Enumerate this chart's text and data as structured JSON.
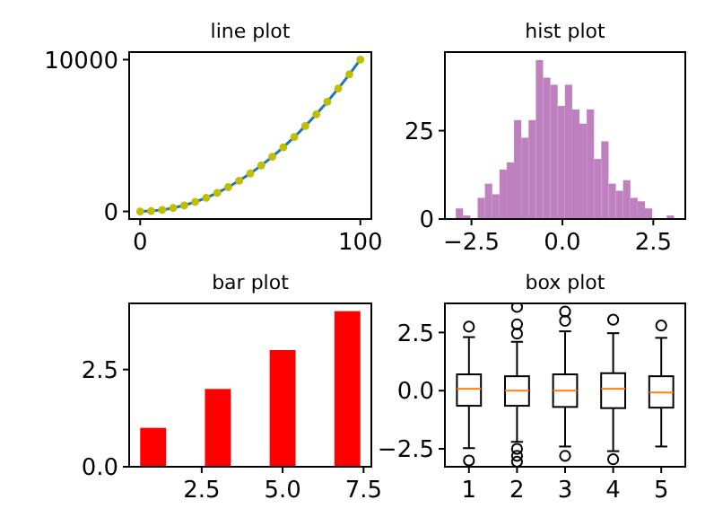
{
  "chart_data": [
    {
      "type": "line",
      "title": "line plot",
      "x": [
        0,
        5,
        10,
        15,
        20,
        25,
        30,
        35,
        40,
        45,
        50,
        55,
        60,
        65,
        70,
        75,
        80,
        85,
        90,
        95,
        100
      ],
      "xlim": [
        -5,
        105
      ],
      "ylim": [
        -500,
        10500
      ],
      "xticks": [
        0,
        100
      ],
      "yticks": [
        0,
        10000
      ],
      "series": [
        {
          "type": "line",
          "color": "#1f77b4",
          "values": [
            0,
            25,
            100,
            225,
            400,
            625,
            900,
            1225,
            1600,
            2025,
            2500,
            3025,
            3600,
            4225,
            4900,
            5625,
            6400,
            7225,
            8100,
            9025,
            10000
          ]
        },
        {
          "type": "scatter",
          "color": "#bfbf00",
          "marker": "circle",
          "values": [
            0,
            25,
            100,
            225,
            400,
            625,
            900,
            1225,
            1600,
            2025,
            2500,
            3025,
            3600,
            4225,
            4900,
            5625,
            6400,
            7225,
            8100,
            9025,
            10000
          ]
        }
      ]
    },
    {
      "type": "histogram",
      "title": "hist plot",
      "color": "#bf80bf",
      "xlim": [
        -3.23,
        3.38
      ],
      "ylim": [
        0,
        47.25
      ],
      "xticks": [
        {
          "value": -2.5,
          "label": "−2.5"
        },
        {
          "value": 0,
          "label": "0.0"
        },
        {
          "value": 2.5,
          "label": "2.5"
        }
      ],
      "yticks": [
        0,
        25
      ],
      "bins": [
        -2.93,
        -2.73,
        -2.53,
        -2.33,
        -2.13,
        -1.93,
        -1.73,
        -1.53,
        -1.33,
        -1.13,
        -0.93,
        -0.73,
        -0.53,
        -0.33,
        -0.13,
        0.07,
        0.27,
        0.47,
        0.67,
        0.87,
        1.07,
        1.27,
        1.47,
        1.67,
        1.87,
        2.07,
        2.27,
        2.47,
        2.67,
        2.87,
        3.07
      ],
      "values": [
        3,
        1,
        0,
        6,
        10,
        7,
        14,
        16,
        28,
        23,
        28,
        45,
        40,
        38,
        32,
        38,
        31,
        27,
        31,
        17,
        22,
        10,
        8,
        11,
        6,
        5,
        3,
        0,
        0,
        1
      ]
    },
    {
      "type": "bar",
      "title": "bar plot",
      "x": [
        1,
        3,
        5,
        7
      ],
      "values": [
        1,
        2,
        3,
        4
      ],
      "color": "#ff0000",
      "xlim": [
        0.26,
        7.74
      ],
      "ylim": [
        0,
        4.2
      ],
      "xticks": [
        {
          "value": 2.5,
          "label": "2.5"
        },
        {
          "value": 5,
          "label": "5.0"
        },
        {
          "value": 7.5,
          "label": "7.5"
        }
      ],
      "yticks": [
        {
          "value": 0,
          "label": "0.0"
        },
        {
          "value": 2.5,
          "label": "2.5"
        }
      ]
    },
    {
      "type": "box",
      "title": "box plot",
      "categories": [
        "1",
        "2",
        "3",
        "4",
        "5"
      ],
      "ylim": [
        -3.27,
        3.75
      ],
      "yticks": [
        {
          "value": -2.5,
          "label": "−2.5"
        },
        {
          "value": 0,
          "label": "0.0"
        },
        {
          "value": 2.5,
          "label": "2.5"
        }
      ],
      "boxes": [
        {
          "low": -2.47,
          "q1": -0.65,
          "median": 0.08,
          "q3": 0.7,
          "high": 2.3,
          "outliers": [
            2.75,
            -3.0
          ]
        },
        {
          "low": -2.2,
          "q1": -0.65,
          "median": 0.0,
          "q3": 0.62,
          "high": 2.1,
          "outliers": [
            3.6,
            2.85,
            2.45,
            -2.5,
            -2.8,
            -3.05
          ]
        },
        {
          "low": -2.4,
          "q1": -0.7,
          "median": 0.0,
          "q3": 0.7,
          "high": 2.55,
          "outliers": [
            3.4,
            3.0,
            -2.8
          ]
        },
        {
          "low": -2.6,
          "q1": -0.75,
          "median": 0.08,
          "q3": 0.75,
          "high": 2.47,
          "outliers": [
            3.05,
            -2.95
          ]
        },
        {
          "low": -2.4,
          "q1": -0.73,
          "median": -0.08,
          "q3": 0.62,
          "high": 2.27,
          "outliers": [
            2.8
          ]
        }
      ]
    }
  ]
}
